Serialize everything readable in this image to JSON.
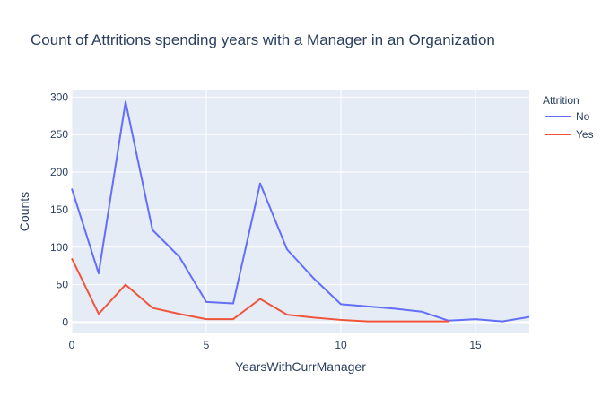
{
  "chart_data": {
    "type": "line",
    "title": "Count of Attritions spending years with a Manager in an Organization",
    "xlabel": "YearsWithCurrManager",
    "ylabel": "Counts",
    "xlim": [
      0,
      17
    ],
    "ylim": [
      -15,
      310
    ],
    "xticks": [
      "0",
      "5",
      "10",
      "15"
    ],
    "yticks": [
      "0",
      "50",
      "100",
      "150",
      "200",
      "250",
      "300"
    ],
    "grid": true,
    "legend_title": "Attrition",
    "legend_position": "top-right",
    "series": [
      {
        "name": "No",
        "color": "#636efa",
        "x": [
          0,
          1,
          2,
          3,
          4,
          5,
          6,
          7,
          8,
          9,
          10,
          11,
          12,
          13,
          14,
          15,
          16,
          17
        ],
        "values": [
          178,
          65,
          294,
          123,
          87,
          27,
          25,
          185,
          97,
          58,
          24,
          21,
          18,
          14,
          2,
          4,
          1,
          7
        ]
      },
      {
        "name": "Yes",
        "color": "#ef553b",
        "x": [
          0,
          1,
          2,
          3,
          4,
          5,
          6,
          7,
          8,
          9,
          10,
          11,
          12,
          13,
          14
        ],
        "values": [
          85,
          11,
          50,
          19,
          11,
          4,
          4,
          31,
          10,
          6,
          3,
          1,
          1,
          1,
          1
        ]
      }
    ]
  }
}
